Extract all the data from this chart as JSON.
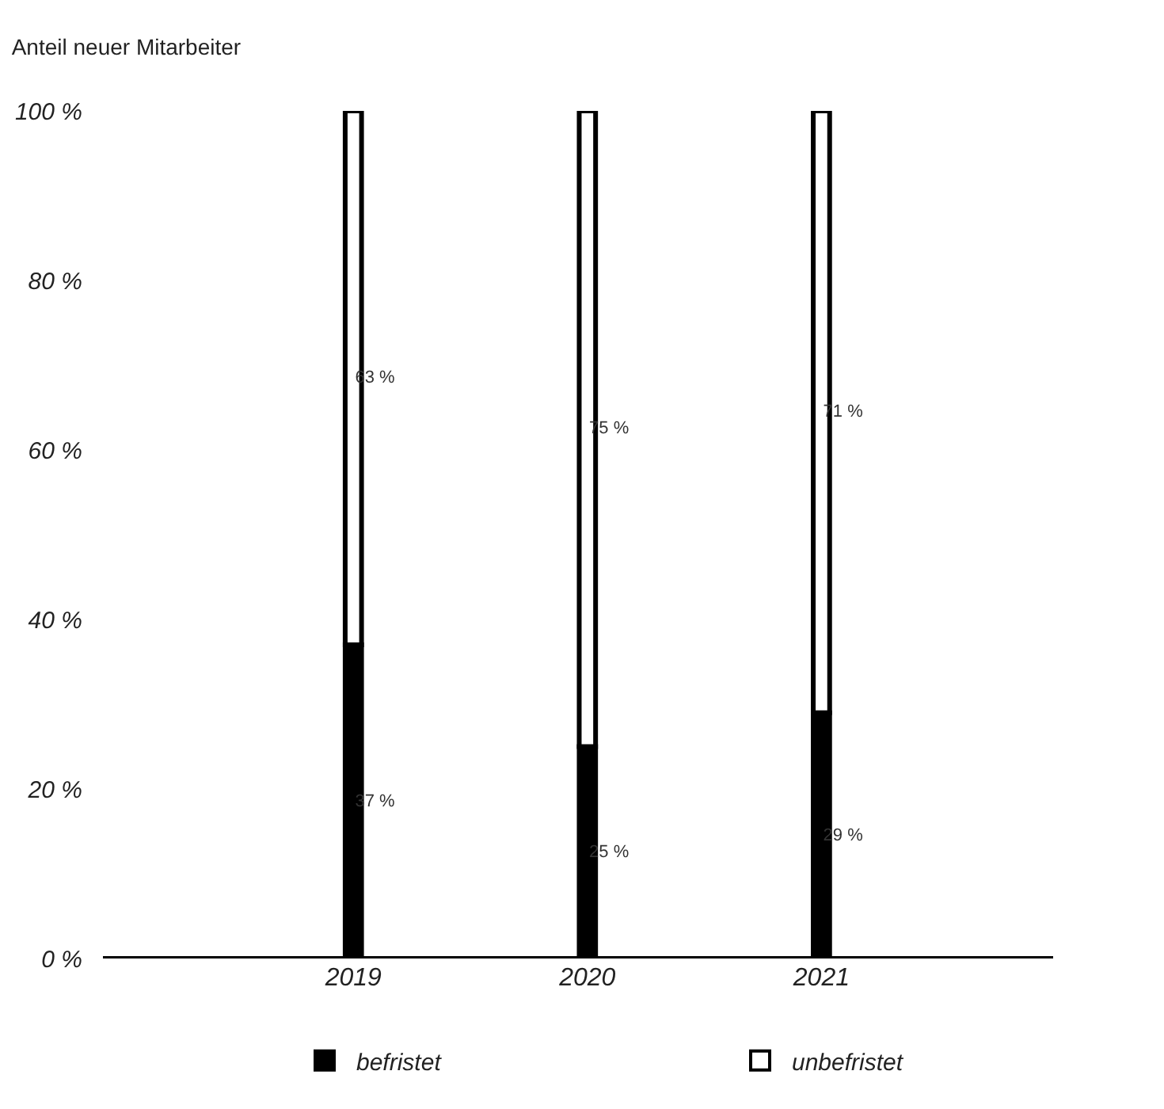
{
  "chart_data": {
    "type": "bar",
    "title": "Anteil neuer Mitarbeiter",
    "stacked": true,
    "categories": [
      "2019",
      "2020",
      "2021"
    ],
    "series": [
      {
        "name": "befristet",
        "color": "#000000",
        "values": [
          37,
          25,
          29
        ],
        "value_labels": [
          "37 %",
          "25 %",
          "29 %"
        ]
      },
      {
        "name": "unbefristet",
        "color": "#ffffff",
        "values": [
          63,
          75,
          71
        ],
        "value_labels": [
          "63 %",
          "75 %",
          "71 %"
        ]
      }
    ],
    "ylim": [
      0,
      100
    ],
    "yticks": [
      {
        "value": 0,
        "label": "0 %"
      },
      {
        "value": 20,
        "label": "20 %"
      },
      {
        "value": 40,
        "label": "40 %"
      },
      {
        "value": 60,
        "label": "60 %"
      },
      {
        "value": 80,
        "label": "80 %"
      },
      {
        "value": 100,
        "label": "100 %"
      }
    ],
    "legend": "bottom"
  }
}
